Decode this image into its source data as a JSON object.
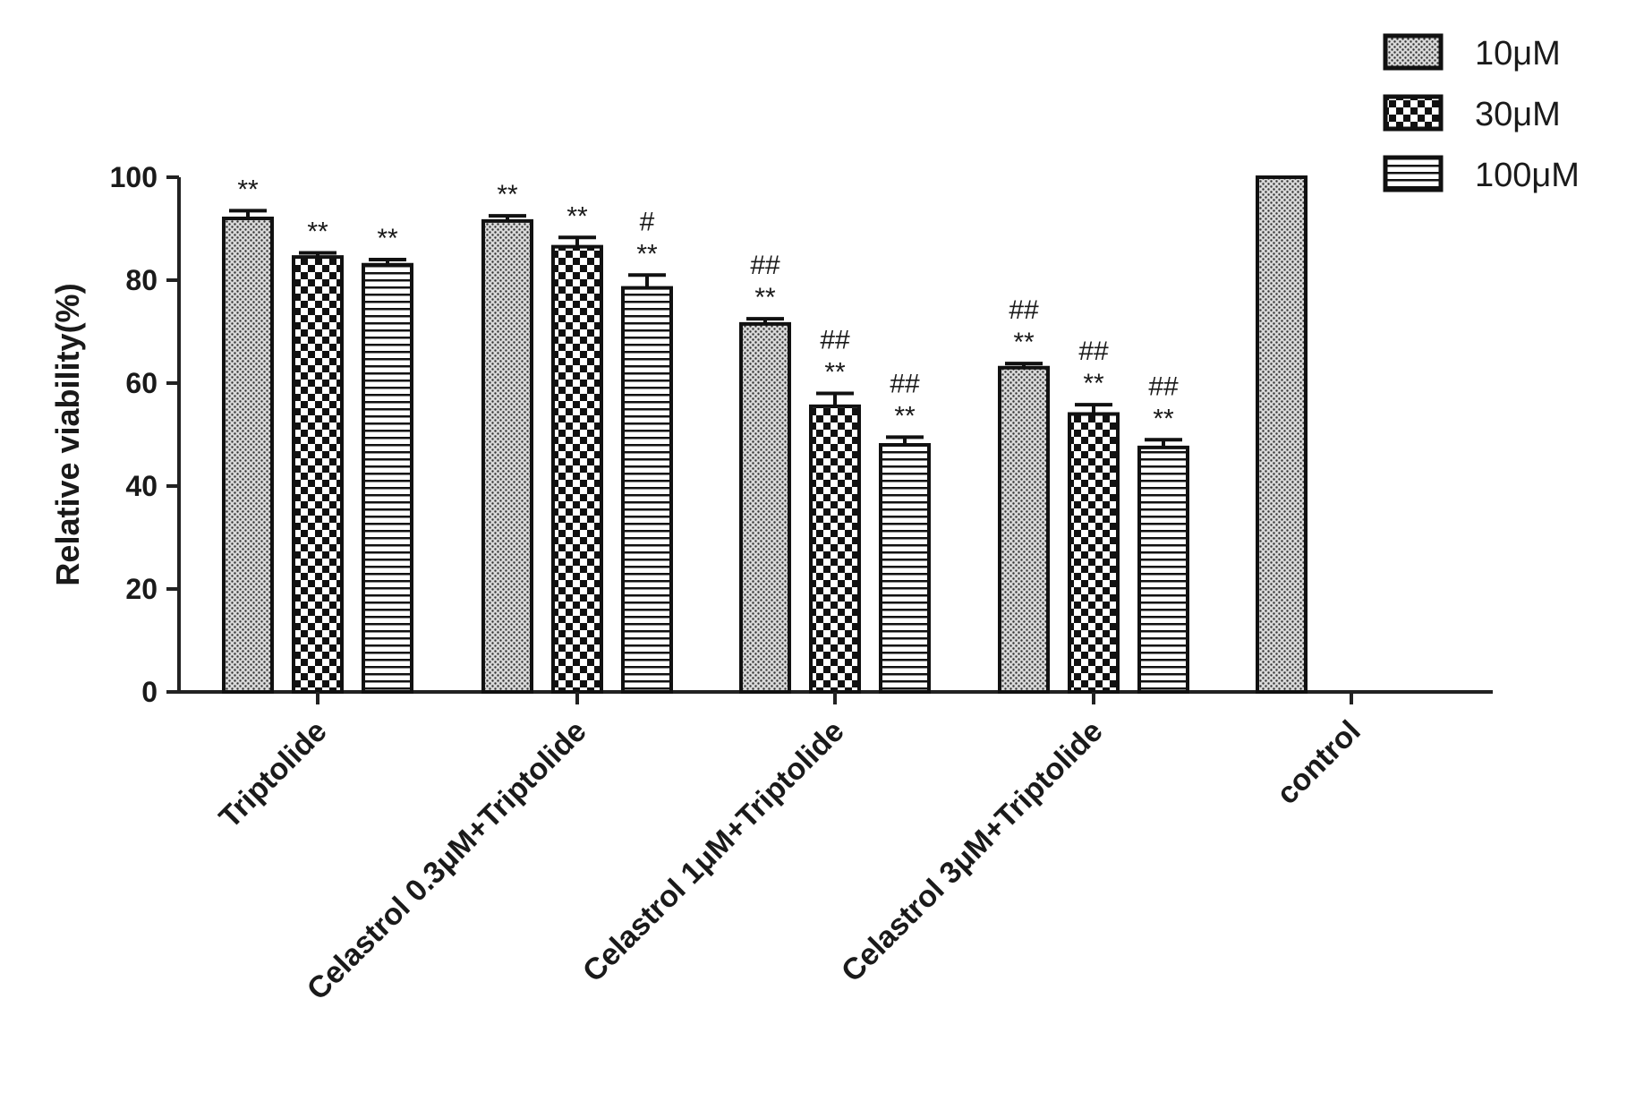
{
  "chart_data": {
    "type": "bar",
    "title": "",
    "xlabel": "",
    "ylabel": "Relative viability(%)",
    "ylim": [
      0,
      100
    ],
    "yticks": [
      0,
      20,
      40,
      60,
      80,
      100
    ],
    "grid": false,
    "legend_position": "top-right",
    "categories": [
      "Triptolide",
      "Celastrol 0.3μM+Triptolide",
      "Celastrol 1μM+Triptolide",
      "Celastrol 3μM+Triptolide",
      "control"
    ],
    "series": [
      {
        "name": "10μM",
        "pattern": "fine-dots",
        "values": [
          92,
          91.5,
          71.5,
          63,
          100
        ],
        "errors": [
          1.5,
          1,
          1,
          0.8,
          0
        ],
        "annotations": [
          "**",
          "**",
          "##\n**",
          "##\n**",
          ""
        ]
      },
      {
        "name": "30μM",
        "pattern": "checker",
        "values": [
          84.5,
          86.5,
          55.5,
          54,
          null
        ],
        "errors": [
          0.8,
          1.8,
          2.5,
          1.8,
          null
        ],
        "annotations": [
          "**",
          "**",
          "##\n**",
          "##\n**",
          ""
        ]
      },
      {
        "name": "100μM",
        "pattern": "horizontal-stripes",
        "values": [
          83,
          78.5,
          48,
          47.5,
          null
        ],
        "errors": [
          1,
          2.5,
          1.5,
          1.5,
          null
        ],
        "annotations": [
          "**",
          "#\n**",
          "##\n**",
          "##\n**",
          ""
        ]
      }
    ]
  },
  "colors": {
    "bar_outline": "#111111",
    "axis": "#222222",
    "background": "#ffffff"
  }
}
